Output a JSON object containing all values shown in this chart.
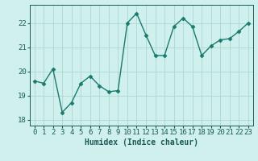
{
  "x": [
    0,
    1,
    2,
    3,
    4,
    5,
    6,
    7,
    8,
    9,
    10,
    11,
    12,
    13,
    14,
    15,
    16,
    17,
    18,
    19,
    20,
    21,
    22,
    23
  ],
  "y": [
    19.6,
    19.5,
    20.1,
    18.3,
    18.7,
    19.5,
    19.8,
    19.4,
    19.15,
    19.2,
    22.0,
    22.4,
    21.5,
    20.65,
    20.65,
    21.85,
    22.2,
    21.85,
    20.65,
    21.05,
    21.3,
    21.35,
    21.65,
    22.0
  ],
  "line_color": "#1a7a6e",
  "marker": "D",
  "marker_size": 2.5,
  "bg_color": "#cff0ec",
  "grid_color": "#aad8d3",
  "tick_color": "#1a5c55",
  "label_color": "#1a5c55",
  "xlabel": "Humidex (Indice chaleur)",
  "ylim": [
    17.75,
    22.75
  ],
  "xlim": [
    -0.5,
    23.5
  ],
  "yticks": [
    18,
    19,
    20,
    21,
    22
  ],
  "xticks": [
    0,
    1,
    2,
    3,
    4,
    5,
    6,
    7,
    8,
    9,
    10,
    11,
    12,
    13,
    14,
    15,
    16,
    17,
    18,
    19,
    20,
    21,
    22,
    23
  ],
  "axis_fontsize": 7,
  "tick_fontsize": 6.5
}
